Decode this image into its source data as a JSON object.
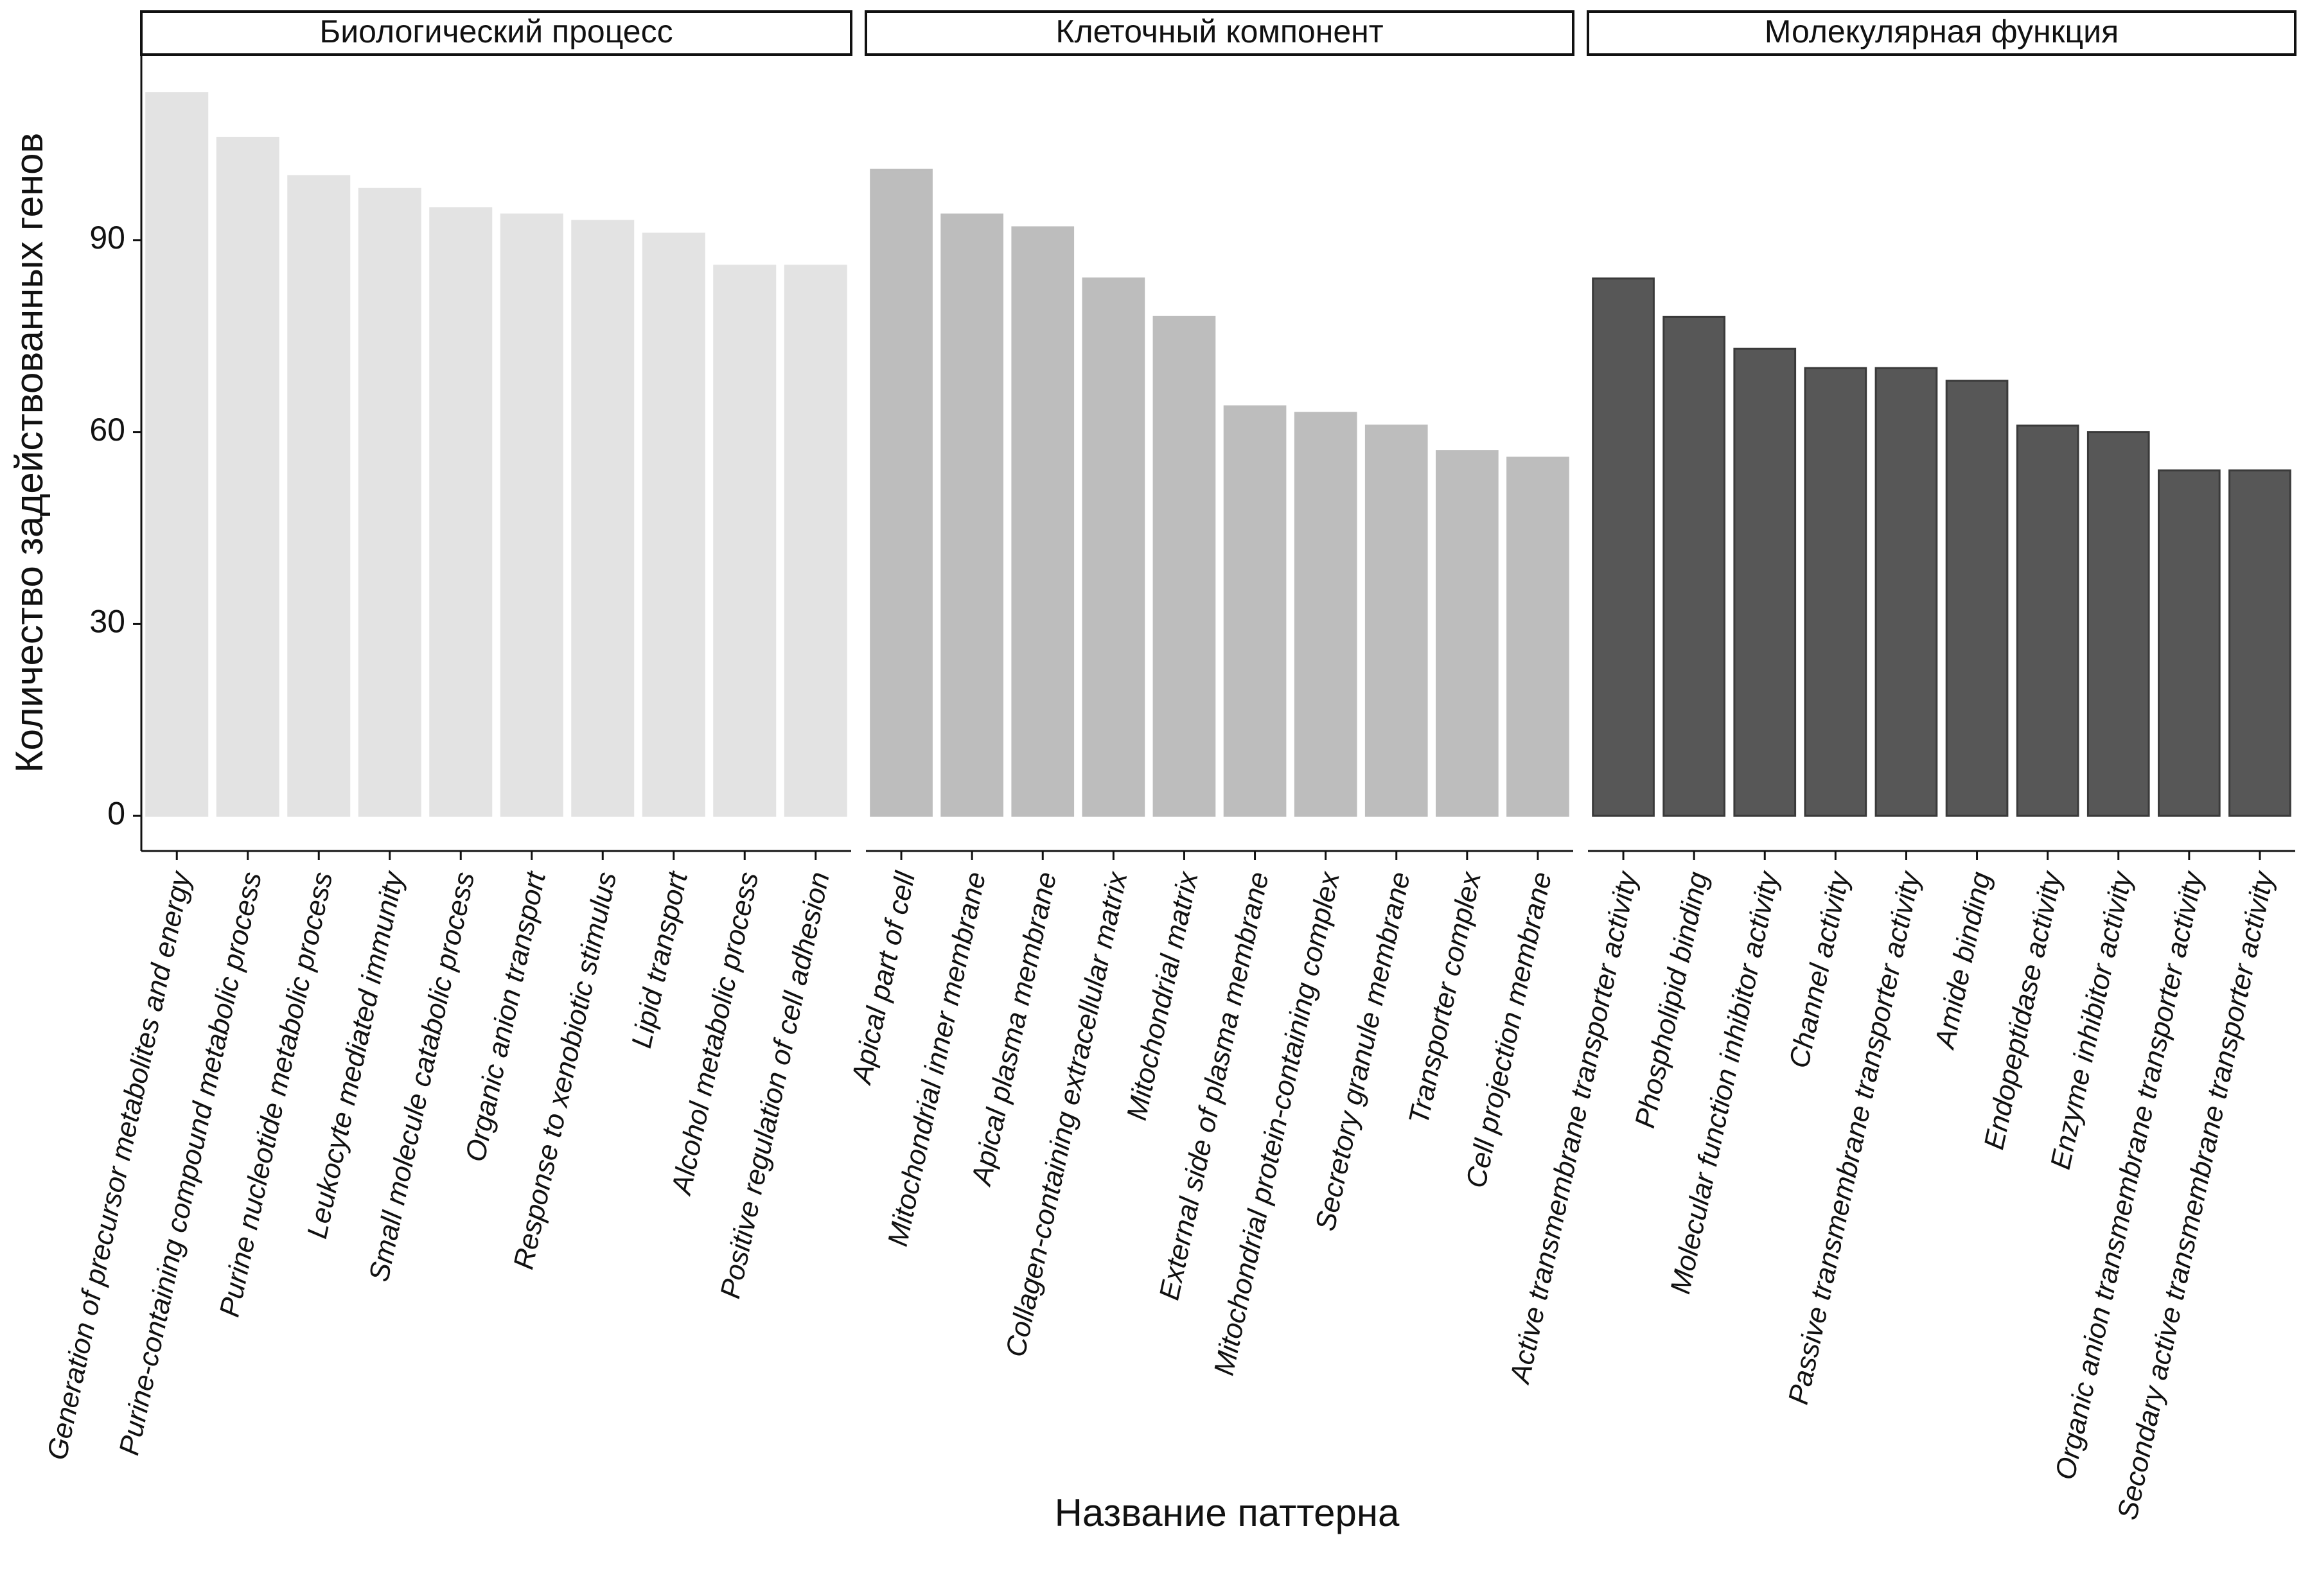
{
  "chart_data": {
    "type": "bar",
    "ylabel": "Количество задействованных генов",
    "xlabel": "Название паттерна",
    "ylim": [
      -5.5,
      119
    ],
    "yticks": [
      0,
      30,
      60,
      90
    ],
    "panels": [
      {
        "title": "Биологический процесс",
        "color": "#e3e3e3",
        "categories": [
          "Generation of precursor metabolites and energy",
          "Purine-containing compound metabolic process",
          "Purine nucleotide metabolic process",
          "Leukocyte mediated immunity",
          "Small molecule catabolic process",
          "Organic anion transport",
          "Response to xenobiotic stimulus",
          "Lipid transport",
          "Alcohol metabolic process",
          "Positive regulation of cell adhesion"
        ],
        "values": [
          113,
          106,
          100,
          98,
          95,
          94,
          93,
          91,
          86,
          86
        ]
      },
      {
        "title": "Клеточный компонент",
        "color": "#bdbdbd",
        "categories": [
          "Apical part of cell",
          "Mitochondrial inner membrane",
          "Apical plasma membrane",
          "Collagen-containing extracellular matrix",
          "Mitochondrial matrix",
          "External side of plasma membrane",
          "Mitochondrial protein-containing complex",
          "Secretory granule membrane",
          "Transporter complex",
          "Cell projection membrane"
        ],
        "values": [
          101,
          94,
          92,
          84,
          78,
          64,
          63,
          61,
          57,
          56
        ]
      },
      {
        "title": "Молекулярная функция",
        "color": "#575757",
        "categories": [
          "Active transmembrane transporter activity",
          "Phospholipid binding",
          "Molecular function inhibitor activity",
          "Channel activity",
          "Passive transmembrane transporter activity",
          "Amide binding",
          "Endopeptidase activity",
          "Enzyme inhibitor activity",
          "Organic anion transmembrane transporter activity",
          "Secondary active transmembrane transporter activity"
        ],
        "values": [
          84,
          78,
          73,
          70,
          70,
          68,
          61,
          60,
          54,
          54
        ]
      }
    ]
  }
}
